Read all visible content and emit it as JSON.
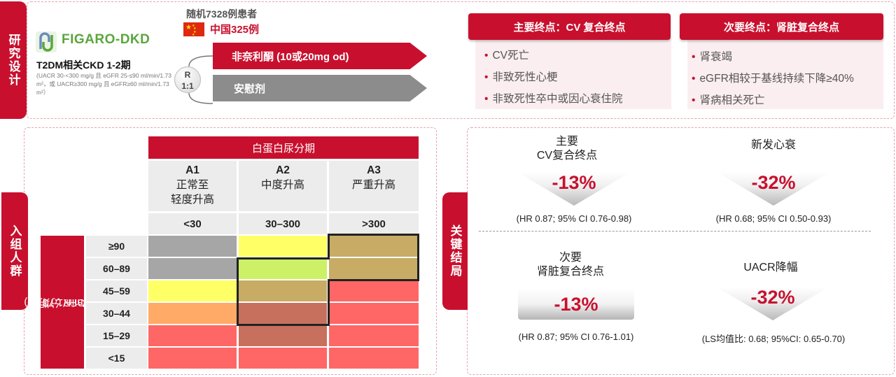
{
  "sections": {
    "design": "研究设计",
    "population": "入组人群",
    "outcomes": "关键结局"
  },
  "trial": {
    "logo_name": "FIGARO-DKD",
    "population_title": "T2DM相关CKD 1-2期",
    "population_note": "(UACR 30-<300 mg/g 且 eGFR 25-≤90 ml/min/1.73 m²，或 UACR≥300 mg/g 且 eGFR≥60 ml/min/1.73 m²）",
    "randomized": "随机7328例患者",
    "china": "中国325例",
    "randomization_top": "R",
    "randomization_ratio": "1:1",
    "arm_drug": "非奈利酮 (10或20mg od)",
    "arm_placebo": "安慰剂"
  },
  "endpoints": {
    "primary_title": "主要终点：CV 复合终点",
    "primary_items": [
      "CV死亡",
      "非致死性心梗",
      "非致死性卒中或因心衰住院"
    ],
    "secondary_title": "次要终点：肾脏复合终点",
    "secondary_items": [
      "肾衰竭",
      "eGFR相较于基线持续下降≥40%",
      "肾病相关死亡"
    ]
  },
  "grid": {
    "albuminuria_title": "白蛋白尿分期",
    "columns": [
      {
        "code": "A1",
        "desc1": "正常至",
        "desc2": "轻度升高",
        "range": "<30"
      },
      {
        "code": "A2",
        "desc1": "中度升高",
        "desc2": "",
        "range": "30–300"
      },
      {
        "code": "A3",
        "desc1": "严重升高",
        "desc2": "",
        "range": ">300"
      }
    ],
    "gfr_label_line1": "GFR 分期",
    "gfr_label_line2": "(ml/min/1.73 m²)",
    "rows": [
      "≥90",
      "60–89",
      "45–59",
      "30–44",
      "15–29",
      "<15"
    ],
    "colors": {
      "gray": "#a6a6a6",
      "yellow": "#ffff66",
      "lime": "#ccf066",
      "khaki": "#c8ab64",
      "orange": "#ffaa66",
      "brownred": "#c8705e",
      "salmon": "#ff6666"
    },
    "cell_colors": [
      [
        "gray",
        "yellow",
        "khaki"
      ],
      [
        "gray",
        "lime",
        "khaki"
      ],
      [
        "yellow",
        "khaki",
        "salmon"
      ],
      [
        "orange",
        "brownred",
        "salmon"
      ],
      [
        "salmon",
        "brownred",
        "salmon"
      ],
      [
        "salmon",
        "salmon",
        "salmon"
      ]
    ]
  },
  "outcomes": [
    {
      "title1": "主要",
      "title2": "CV复合终点",
      "value": "-13%",
      "stat": "(HR 0.87; 95% CI 0.76-0.98)"
    },
    {
      "title1": "新发心衰",
      "title2": "",
      "value": "-32%",
      "stat": "(HR 0.68; 95% CI 0.50-0.93)"
    },
    {
      "title1": "次要",
      "title2": "肾脏复合终点",
      "value": "-13%",
      "stat": "(HR 0.87; 95% CI 0.76-1.01)"
    },
    {
      "title1": "UACR降幅",
      "title2": "",
      "value": "-32%",
      "stat": "(LS均值比: 0.68; 95%CI: 0.65-0.70)"
    }
  ]
}
